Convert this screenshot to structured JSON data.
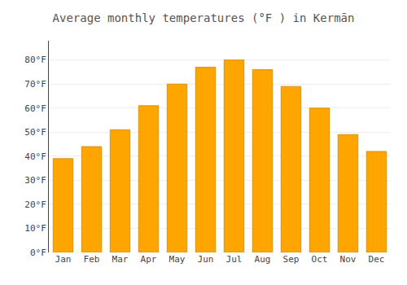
{
  "chart_data": {
    "type": "bar",
    "title": "Average monthly temperatures (°F ) in Kermān",
    "categories": [
      "Jan",
      "Feb",
      "Mar",
      "Apr",
      "May",
      "Jun",
      "Jul",
      "Aug",
      "Sep",
      "Oct",
      "Nov",
      "Dec"
    ],
    "values": [
      39,
      44,
      51,
      61,
      70,
      77,
      80,
      76,
      69,
      60,
      49,
      42
    ],
    "color": "#FFA500",
    "ylim": [
      0,
      88
    ],
    "yticks": [
      {
        "value": 0,
        "label": "0°F"
      },
      {
        "value": 10,
        "label": "10°F"
      },
      {
        "value": 20,
        "label": "20°F"
      },
      {
        "value": 30,
        "label": "30°F"
      },
      {
        "value": 40,
        "label": "40°F"
      },
      {
        "value": 50,
        "label": "50°F"
      },
      {
        "value": 60,
        "label": "60°F"
      },
      {
        "value": 70,
        "label": "70°F"
      },
      {
        "value": 80,
        "label": "80°F"
      }
    ],
    "grid": true
  }
}
